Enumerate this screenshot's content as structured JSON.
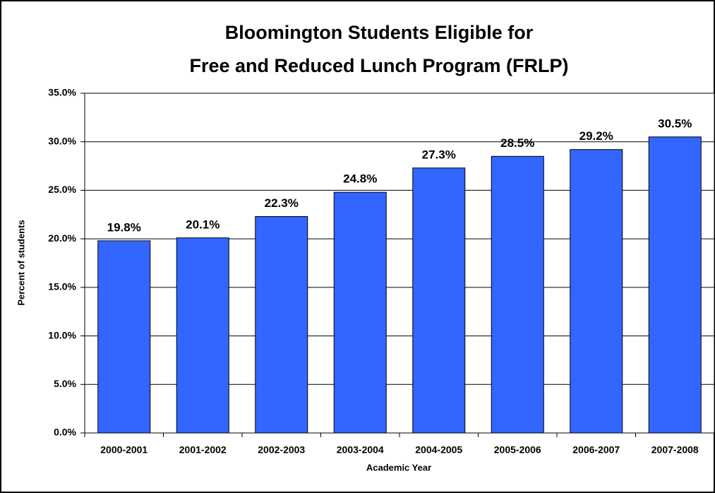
{
  "chart_data": {
    "type": "bar",
    "title": [
      "Bloomington Students Eligible for",
      "Free and Reduced Lunch Program (FRLP)"
    ],
    "x_label": "Academic Year",
    "y_label": "Percent of students",
    "categories": [
      "2000-2001",
      "2001-2002",
      "2002-2003",
      "2003-2004",
      "2004-2005",
      "2005-2006",
      "2006-2007",
      "2007-2008"
    ],
    "values": [
      19.8,
      20.1,
      22.3,
      24.8,
      27.3,
      28.5,
      29.2,
      30.5
    ],
    "value_labels": [
      "19.8%",
      "20.1%",
      "22.3%",
      "24.8%",
      "27.3%",
      "28.5%",
      "29.2%",
      "30.5%"
    ],
    "color": "#3366ff",
    "ylim": [
      0,
      35
    ],
    "yticks": [
      {
        "value": 0,
        "label": "0.0%"
      },
      {
        "value": 5,
        "label": "5.0%"
      },
      {
        "value": 10,
        "label": "10.0%"
      },
      {
        "value": 15,
        "label": "15.0%"
      },
      {
        "value": 20,
        "label": "20.0%"
      },
      {
        "value": 25,
        "label": "25.0%"
      },
      {
        "value": 30,
        "label": "30.0%"
      },
      {
        "value": 35,
        "label": "35.0%"
      }
    ],
    "grid": true
  }
}
